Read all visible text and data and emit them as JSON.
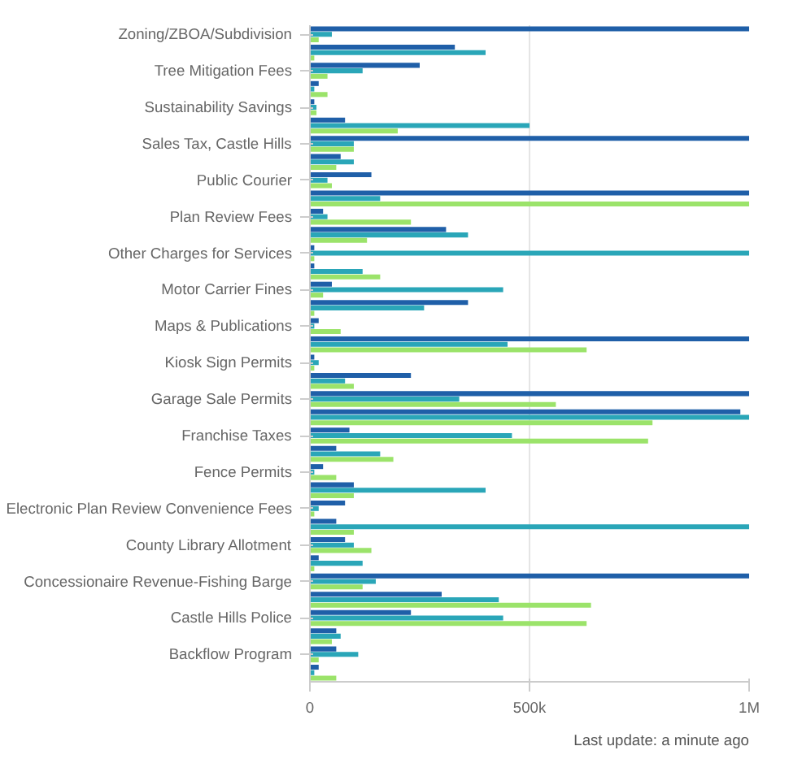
{
  "chart_data": {
    "type": "bar",
    "orientation": "horizontal",
    "categories": [
      "Zoning/ZBOA/Subdivision",
      null,
      "Tree Mitigation Fees",
      null,
      "Sustainability Savings",
      null,
      "Sales Tax, Castle Hills",
      null,
      "Public Courier",
      null,
      "Plan Review Fees",
      null,
      "Other Charges for Services",
      null,
      "Motor Carrier Fines",
      null,
      "Maps & Publications",
      null,
      "Kiosk Sign Permits",
      null,
      "Garage Sale Permits",
      null,
      "Franchise Taxes",
      null,
      "Fence Permits",
      null,
      "Electronic Plan Review Convenience Fees",
      null,
      "County Library Allotment",
      null,
      "Concessionaire Revenue-Fishing Barge",
      null,
      "Castle Hills Police",
      null,
      "Backflow Program",
      null
    ],
    "series": [
      {
        "color": "#1f5fa8",
        "values": [
          1000000,
          330000,
          250000,
          20000,
          10000,
          80000,
          1000000,
          70000,
          140000,
          1000000,
          30000,
          310000,
          10000,
          10000,
          50000,
          360000,
          20000,
          1000000,
          10000,
          230000,
          1000000,
          980000,
          90000,
          60000,
          30000,
          100000,
          80000,
          60000,
          80000,
          20000,
          1000000,
          300000,
          230000,
          60000,
          60000,
          20000
        ]
      },
      {
        "color": "#2aa6b8",
        "values": [
          50000,
          400000,
          120000,
          10000,
          15000,
          500000,
          100000,
          100000,
          40000,
          160000,
          40000,
          360000,
          1000000,
          120000,
          440000,
          260000,
          10000,
          450000,
          20000,
          80000,
          340000,
          1000000,
          460000,
          160000,
          10000,
          400000,
          20000,
          1000000,
          100000,
          120000,
          150000,
          430000,
          440000,
          70000,
          110000,
          10000
        ]
      },
      {
        "color": "#9be36a",
        "values": [
          20000,
          10000,
          40000,
          40000,
          15000,
          200000,
          100000,
          60000,
          50000,
          1000000,
          230000,
          130000,
          10000,
          160000,
          30000,
          10000,
          70000,
          630000,
          10000,
          100000,
          560000,
          780000,
          770000,
          190000,
          60000,
          100000,
          10000,
          100000,
          140000,
          10000,
          120000,
          640000,
          630000,
          50000,
          20000,
          60000
        ]
      }
    ],
    "xlim": [
      0,
      1000000
    ],
    "xticks": [
      {
        "value": 0,
        "label": "0"
      },
      {
        "value": 500000,
        "label": "500k"
      },
      {
        "value": 1000000,
        "label": "1M"
      }
    ],
    "grid": "x",
    "annotations": [
      "Last update: a minute ago"
    ]
  }
}
